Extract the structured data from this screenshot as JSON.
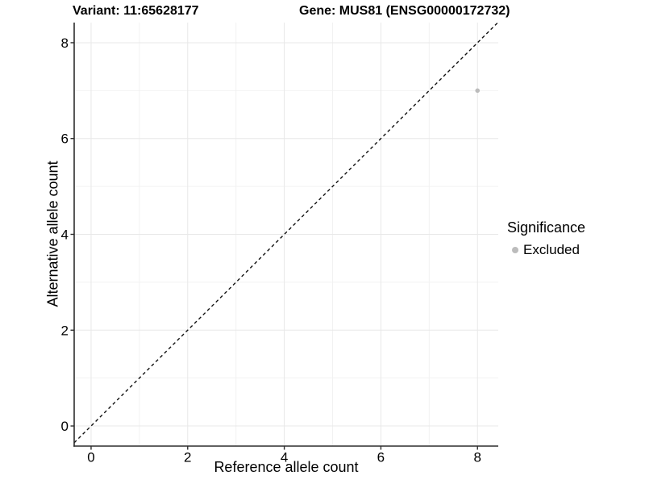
{
  "header": {
    "variant_title": "Variant: 11:65628177",
    "gene_title": "Gene: MUS81 (ENSG00000172732)"
  },
  "legend": {
    "title": "Significance",
    "items": [
      {
        "label": "Excluded",
        "color": "#bcbcbc"
      }
    ]
  },
  "chart_data": {
    "type": "scatter",
    "xlabel": "Reference allele count",
    "ylabel": "Alternative allele count",
    "xlim": [
      -0.35,
      8.43
    ],
    "ylim": [
      -0.42,
      8.42
    ],
    "x_ticks": [
      0,
      2,
      4,
      6,
      8
    ],
    "y_ticks": [
      0,
      2,
      4,
      6,
      8
    ],
    "x_minor_ticks": [
      1,
      3,
      5,
      7
    ],
    "y_minor_ticks": [
      1,
      3,
      5,
      7
    ],
    "grid": {
      "major_color": "#e8e8e8",
      "minor_color": "#f2f2f2"
    },
    "axis_color": "#2d2d2d",
    "reference_line": {
      "slope": 1,
      "intercept": 0,
      "style": "dashed",
      "color": "#111111"
    },
    "series": [
      {
        "name": "Excluded",
        "color": "#bcbcbc",
        "point_radius": 2.8,
        "points": [
          {
            "x": 8,
            "y": 7
          }
        ]
      }
    ],
    "legend_position": "right"
  }
}
